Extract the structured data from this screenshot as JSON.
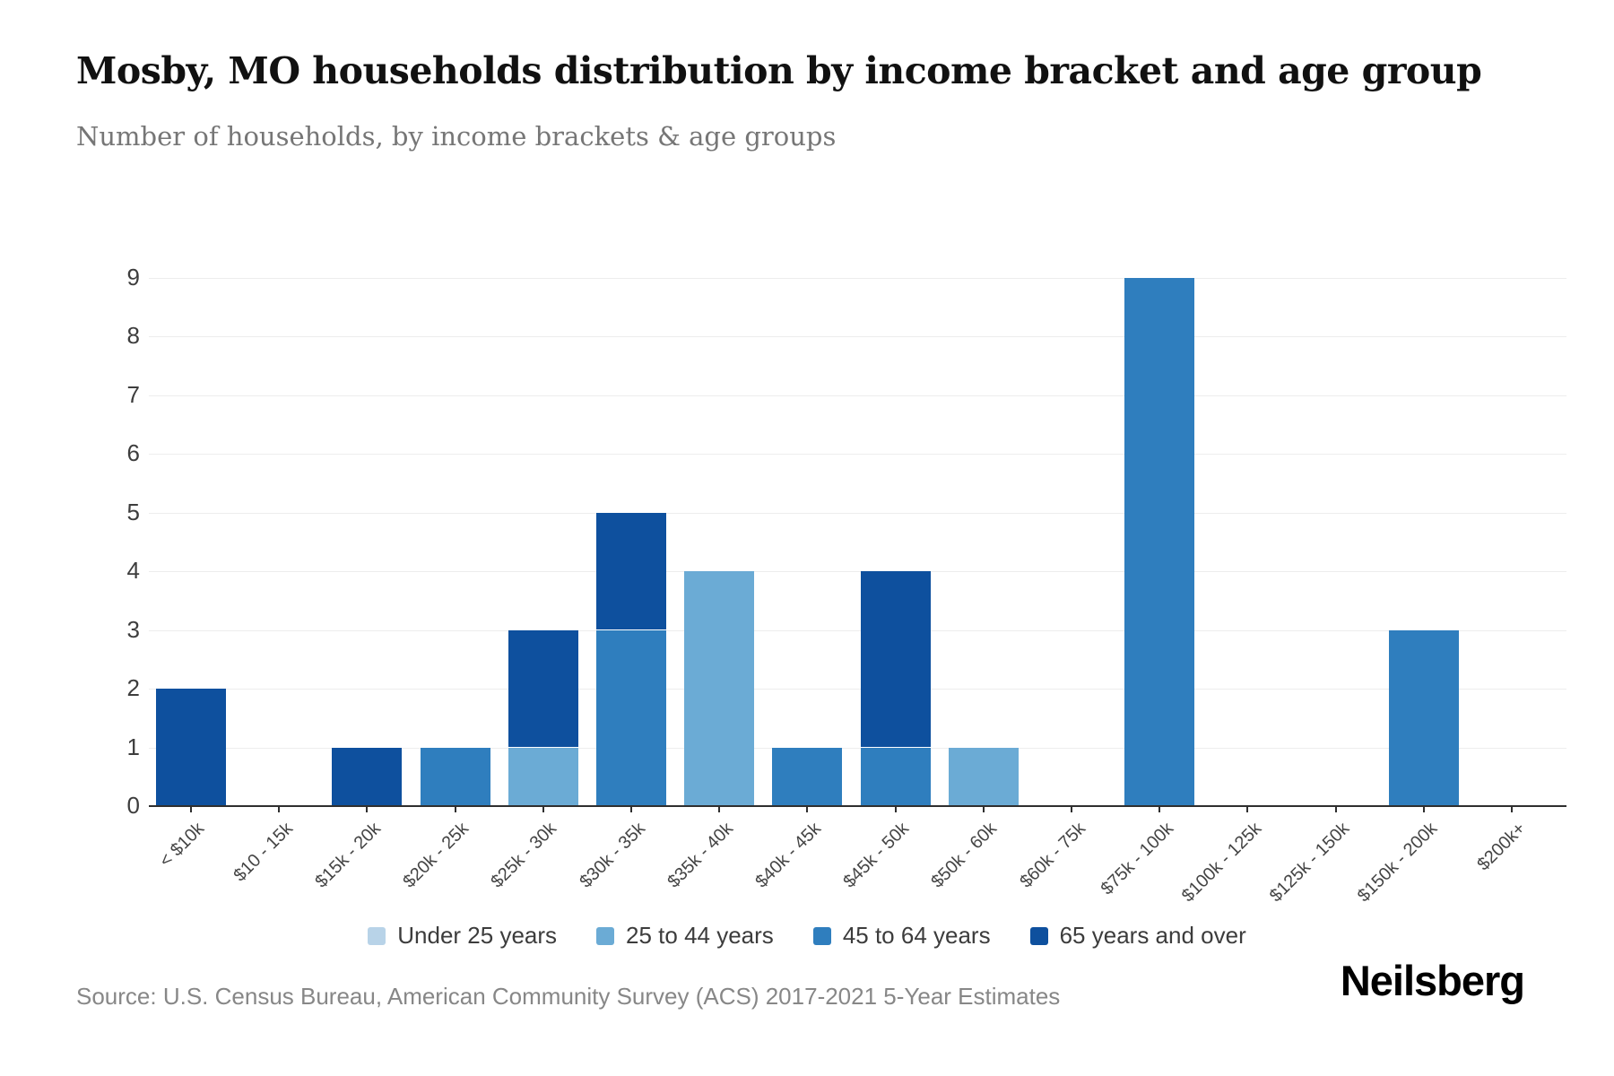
{
  "header": {
    "title": "Mosby, MO households distribution by income bracket and age group",
    "subtitle": "Number of households, by income brackets & age groups"
  },
  "footer": {
    "source": "Source: U.S. Census Bureau, American Community Survey (ACS) 2017-2021 5-Year Estimates",
    "brand": "Neilsberg"
  },
  "colors": {
    "under25": "#b8d3e8",
    "age25to44": "#6babd5",
    "age45to64": "#2f7ebe",
    "age65plus": "#0e509e",
    "grid": "#ededed",
    "axis": "#2f2f2f"
  },
  "chart_data": {
    "type": "bar",
    "stacked": true,
    "title": "Mosby, MO households distribution by income bracket and age group",
    "subtitle": "Number of households, by income brackets & age groups",
    "xlabel": "",
    "ylabel": "",
    "ylim": [
      0,
      9
    ],
    "yticks": [
      0,
      1,
      2,
      3,
      4,
      5,
      6,
      7,
      8,
      9
    ],
    "grid": true,
    "legend_position": "bottom",
    "categories": [
      "< $10k",
      "$10 - 15k",
      "$15k - 20k",
      "$20k - 25k",
      "$25k - 30k",
      "$30k - 35k",
      "$35k - 40k",
      "$40k - 45k",
      "$45k - 50k",
      "$50k - 60k",
      "$60k - 75k",
      "$75k - 100k",
      "$100k - 125k",
      "$125k - 150k",
      "$150k - 200k",
      "$200k+"
    ],
    "series": [
      {
        "name": "Under 25 years",
        "color_key": "under25",
        "values": [
          0,
          0,
          0,
          0,
          0,
          0,
          0,
          0,
          0,
          0,
          0,
          0,
          0,
          0,
          0,
          0
        ]
      },
      {
        "name": "25 to 44 years",
        "color_key": "age25to44",
        "values": [
          0,
          0,
          0,
          0,
          1,
          0,
          4,
          0,
          0,
          1,
          0,
          0,
          0,
          0,
          0,
          0
        ]
      },
      {
        "name": "45 to 64 years",
        "color_key": "age45to64",
        "values": [
          0,
          0,
          0,
          1,
          0,
          3,
          0,
          1,
          1,
          0,
          0,
          9,
          0,
          0,
          3,
          0
        ]
      },
      {
        "name": "65 years and over",
        "color_key": "age65plus",
        "values": [
          2,
          0,
          1,
          0,
          2,
          2,
          0,
          0,
          3,
          0,
          0,
          0,
          0,
          0,
          0,
          0
        ]
      }
    ],
    "totals": [
      2,
      0,
      1,
      1,
      3,
      5,
      4,
      1,
      4,
      1,
      0,
      9,
      0,
      0,
      3,
      0
    ]
  }
}
